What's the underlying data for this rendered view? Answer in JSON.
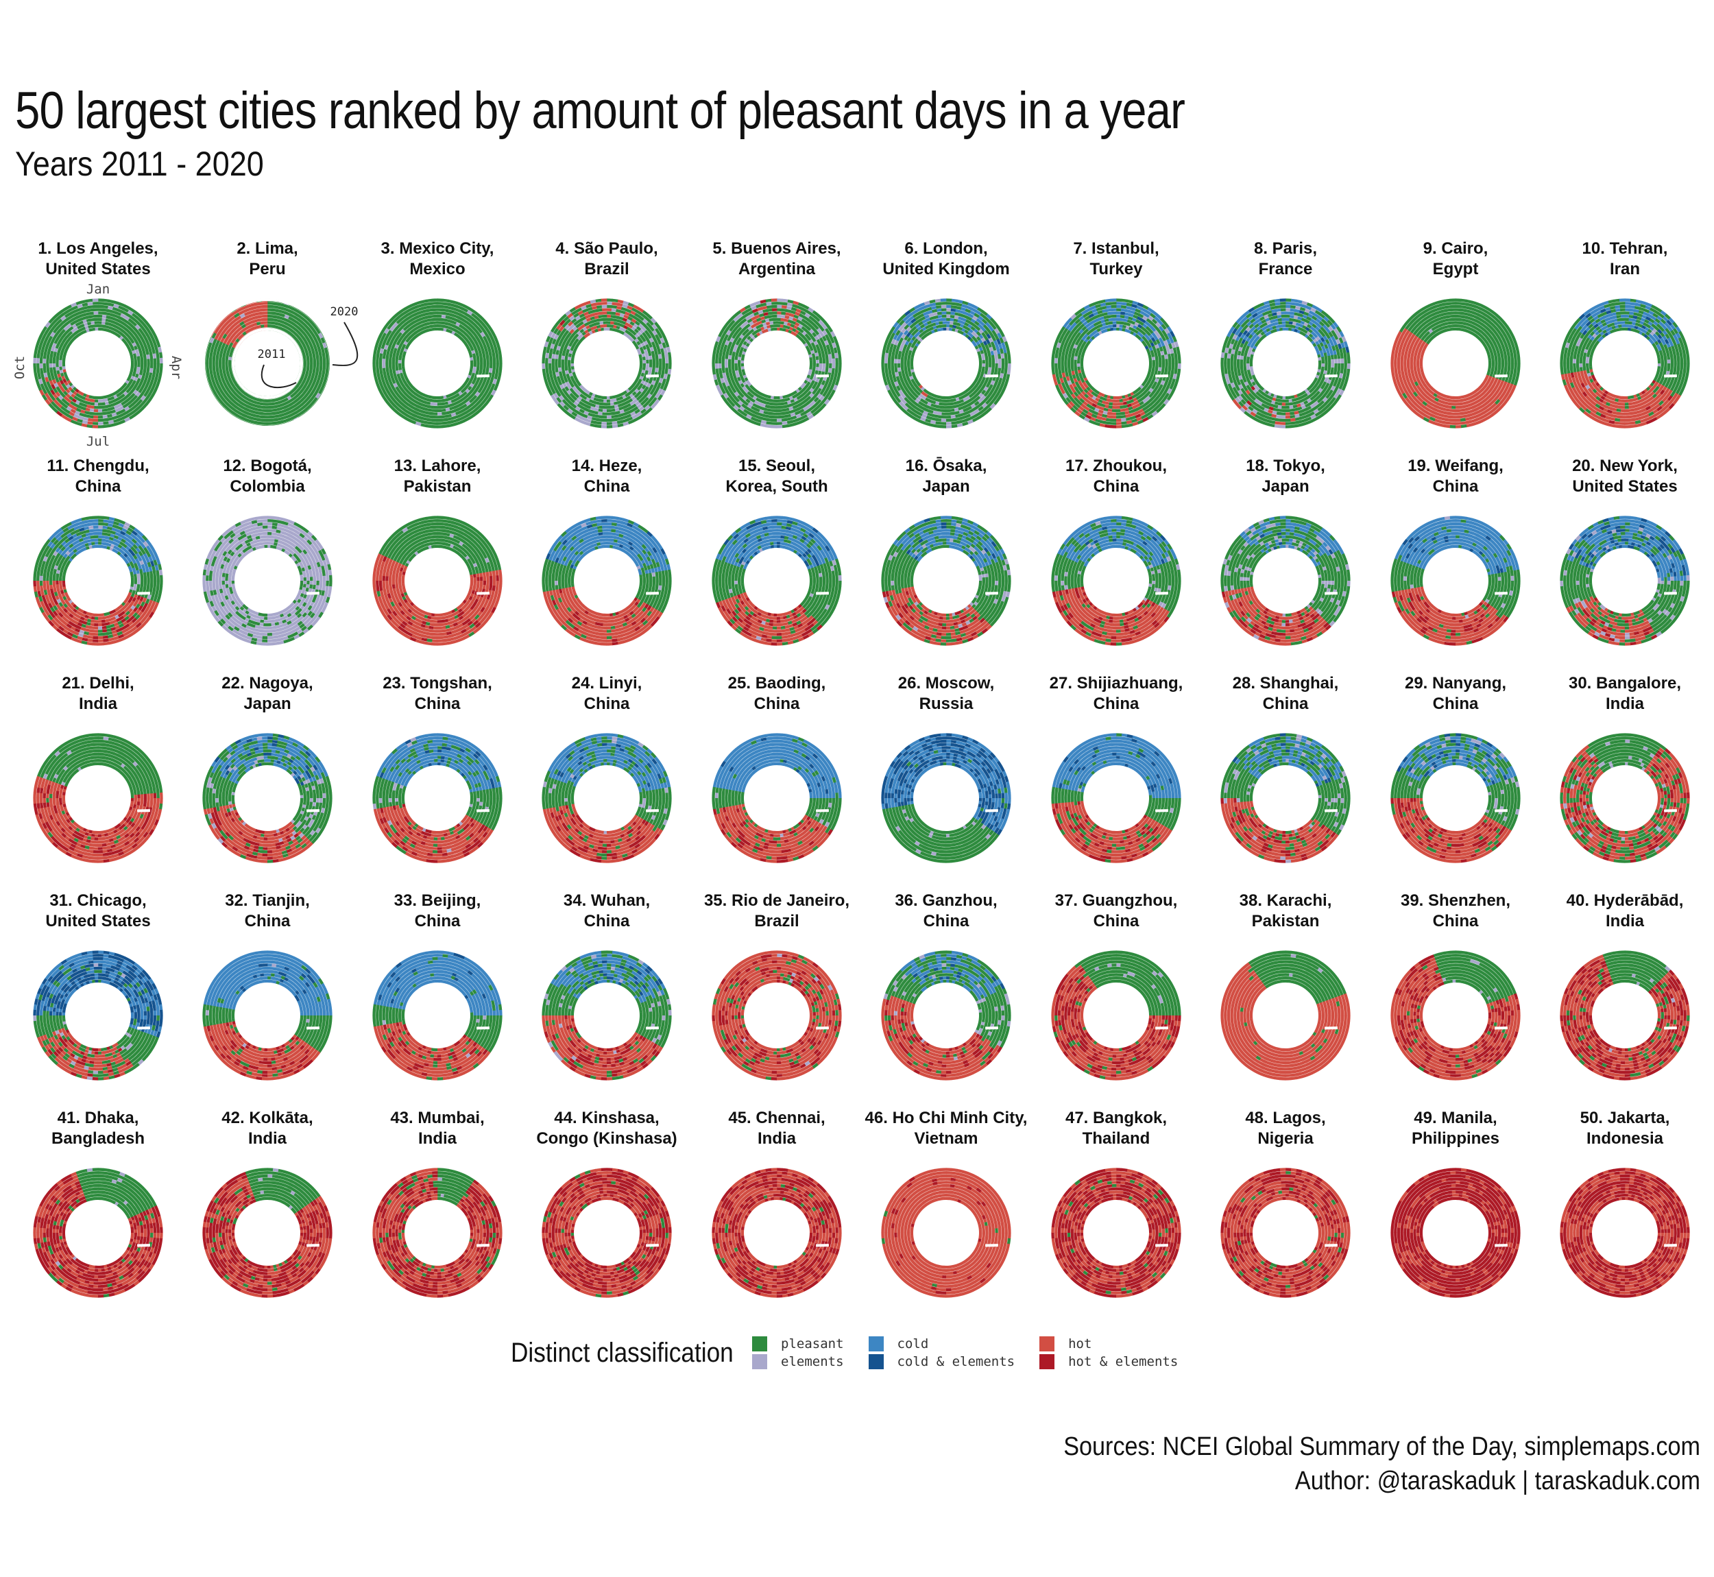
{
  "title": "50 largest cities ranked by amount of pleasant days in a year",
  "subtitle": "Years 2011 - 2020",
  "colors": {
    "pleasant": "#2e8b3e",
    "elements": "#a9a8cc",
    "cold": "#3d86c3",
    "cold_elements": "#15538f",
    "hot": "#d24e43",
    "hot_elements": "#ad1a26"
  },
  "annotations": {
    "month_labels": [
      "Jan",
      "Apr",
      "Jul",
      "Oct"
    ],
    "start_year": "2011",
    "end_year": "2020"
  },
  "legend": {
    "title": "Distinct classification",
    "items": [
      {
        "key": "pleasant",
        "label": "pleasant"
      },
      {
        "key": "elements",
        "label": "elements"
      },
      {
        "key": "cold",
        "label": "cold"
      },
      {
        "key": "cold_elements",
        "label": "cold & elements"
      },
      {
        "key": "hot",
        "label": "hot"
      },
      {
        "key": "hot_elements",
        "label": "hot & elements"
      }
    ]
  },
  "credits": {
    "sources": "Sources: NCEI Global Summary of the Day, simplemaps.com",
    "author": "Author: @taraskaduk | taraskaduk.com"
  },
  "chart_data": {
    "type": "radial-heatmap",
    "rings": "years 2011-2020 (inner to outer)",
    "angle": "day of year",
    "cities": [
      {
        "rank": 1,
        "name": "Los Angeles,",
        "country": "United States",
        "profile": "mostly pleasant, some elements and hot in Jul-Sep"
      },
      {
        "rank": 2,
        "name": "Lima,",
        "country": "Peru",
        "profile": "pleasant, hot Jan-Mar"
      },
      {
        "rank": 3,
        "name": "Mexico City,",
        "country": "Mexico",
        "profile": "pleasant, elements Jun-Oct"
      },
      {
        "rank": 4,
        "name": "São Paulo,",
        "country": "Brazil",
        "profile": "pleasant with elements and hot"
      },
      {
        "rank": 5,
        "name": "Buenos Aires,",
        "country": "Argentina",
        "profile": "pleasant with elements, hot Jan"
      },
      {
        "rank": 6,
        "name": "London,",
        "country": "United Kingdom",
        "profile": "pleasant, cold in winter"
      },
      {
        "rank": 7,
        "name": "Istanbul,",
        "country": "Turkey",
        "profile": "pleasant, cold in winter, hot in summer"
      },
      {
        "rank": 8,
        "name": "Paris,",
        "country": "France",
        "profile": "pleasant, cold in winter"
      },
      {
        "rank": 9,
        "name": "Cairo,",
        "country": "Egypt",
        "profile": "pleasant in winter, hot May-Oct"
      },
      {
        "rank": 10,
        "name": "Tehran,",
        "country": "Iran",
        "profile": "cold in winter, hot in summer"
      },
      {
        "rank": 11,
        "name": "Chengdu,",
        "country": "China",
        "profile": "cold in winter, hot in summer"
      },
      {
        "rank": 12,
        "name": "Bogotá,",
        "country": "Colombia",
        "profile": "mostly elements"
      },
      {
        "rank": 13,
        "name": "Lahore,",
        "country": "Pakistan",
        "profile": "pleasant in winter, hot Apr-Oct"
      },
      {
        "rank": 14,
        "name": "Heze,",
        "country": "China",
        "profile": "cold in winter, hot in summer"
      },
      {
        "rank": 15,
        "name": "Seoul,",
        "country": "Korea, South",
        "profile": "cold in winter, hot in summer"
      },
      {
        "rank": 16,
        "name": "Ōsaka,",
        "country": "Japan",
        "profile": "cold in winter, hot in summer"
      },
      {
        "rank": 17,
        "name": "Zhoukou,",
        "country": "China",
        "profile": "cold in winter, hot in summer"
      },
      {
        "rank": 18,
        "name": "Tokyo,",
        "country": "Japan",
        "profile": "cold in winter, hot in summer"
      },
      {
        "rank": 19,
        "name": "Weifang,",
        "country": "China",
        "profile": "cold in winter, hot in summer"
      },
      {
        "rank": 20,
        "name": "New York,",
        "country": "United States",
        "profile": "cold in winter, hot in summer"
      },
      {
        "rank": 21,
        "name": "Delhi,",
        "country": "India",
        "profile": "pleasant in winter, hot Apr-Oct"
      },
      {
        "rank": 22,
        "name": "Nagoya,",
        "country": "Japan",
        "profile": "cold in winter, hot in summer"
      },
      {
        "rank": 23,
        "name": "Tongshan,",
        "country": "China",
        "profile": "cold in winter, hot in summer"
      },
      {
        "rank": 24,
        "name": "Linyi,",
        "country": "China",
        "profile": "cold in winter, hot in summer"
      },
      {
        "rank": 25,
        "name": "Baoding,",
        "country": "China",
        "profile": "cold in winter, hot in summer"
      },
      {
        "rank": 26,
        "name": "Moscow,",
        "country": "Russia",
        "profile": "cold Oct-Apr, pleasant in summer"
      },
      {
        "rank": 27,
        "name": "Shijiazhuang,",
        "country": "China",
        "profile": "cold in winter, hot in summer"
      },
      {
        "rank": 28,
        "name": "Shanghai,",
        "country": "China",
        "profile": "cold in winter, hot in summer"
      },
      {
        "rank": 29,
        "name": "Nanyang,",
        "country": "China",
        "profile": "cold in winter, hot in summer"
      },
      {
        "rank": 30,
        "name": "Bangalore,",
        "country": "India",
        "profile": "hot with pleasant"
      },
      {
        "rank": 31,
        "name": "Chicago,",
        "country": "United States",
        "profile": "cold in winter, hot in summer"
      },
      {
        "rank": 32,
        "name": "Tianjin,",
        "country": "China",
        "profile": "cold in winter, hot in summer"
      },
      {
        "rank": 33,
        "name": "Beijing,",
        "country": "China",
        "profile": "cold in winter, hot in summer"
      },
      {
        "rank": 34,
        "name": "Wuhan,",
        "country": "China",
        "profile": "cold in winter, hot in summer"
      },
      {
        "rank": 35,
        "name": "Rio de Janeiro,",
        "country": "Brazil",
        "profile": "mostly hot"
      },
      {
        "rank": 36,
        "name": "Ganzhou,",
        "country": "China",
        "profile": "cold in winter, hot in summer"
      },
      {
        "rank": 37,
        "name": "Guangzhou,",
        "country": "China",
        "profile": "mostly hot, pleasant in winter"
      },
      {
        "rank": 38,
        "name": "Karachi,",
        "country": "Pakistan",
        "profile": "mostly hot, pleasant in winter"
      },
      {
        "rank": 39,
        "name": "Shenzhen,",
        "country": "China",
        "profile": "mostly hot"
      },
      {
        "rank": 40,
        "name": "Hyderābād,",
        "country": "India",
        "profile": "mostly hot"
      },
      {
        "rank": 41,
        "name": "Dhaka,",
        "country": "Bangladesh",
        "profile": "mostly hot"
      },
      {
        "rank": 42,
        "name": "Kolkāta,",
        "country": "India",
        "profile": "mostly hot"
      },
      {
        "rank": 43,
        "name": "Mumbai,",
        "country": "India",
        "profile": "mostly hot"
      },
      {
        "rank": 44,
        "name": "Kinshasa,",
        "country": "Congo (Kinshasa)",
        "profile": "almost all hot"
      },
      {
        "rank": 45,
        "name": "Chennai,",
        "country": "India",
        "profile": "almost all hot"
      },
      {
        "rank": 46,
        "name": "Ho Chi Minh City,",
        "country": "Vietnam",
        "profile": "almost all hot"
      },
      {
        "rank": 47,
        "name": "Bangkok,",
        "country": "Thailand",
        "profile": "almost all hot"
      },
      {
        "rank": 48,
        "name": "Lagos,",
        "country": "Nigeria",
        "profile": "almost all hot"
      },
      {
        "rank": 49,
        "name": "Manila,",
        "country": "Philippines",
        "profile": "hot and hot & elements"
      },
      {
        "rank": 50,
        "name": "Jakarta,",
        "country": "Indonesia",
        "profile": "hot and hot & elements"
      }
    ]
  }
}
